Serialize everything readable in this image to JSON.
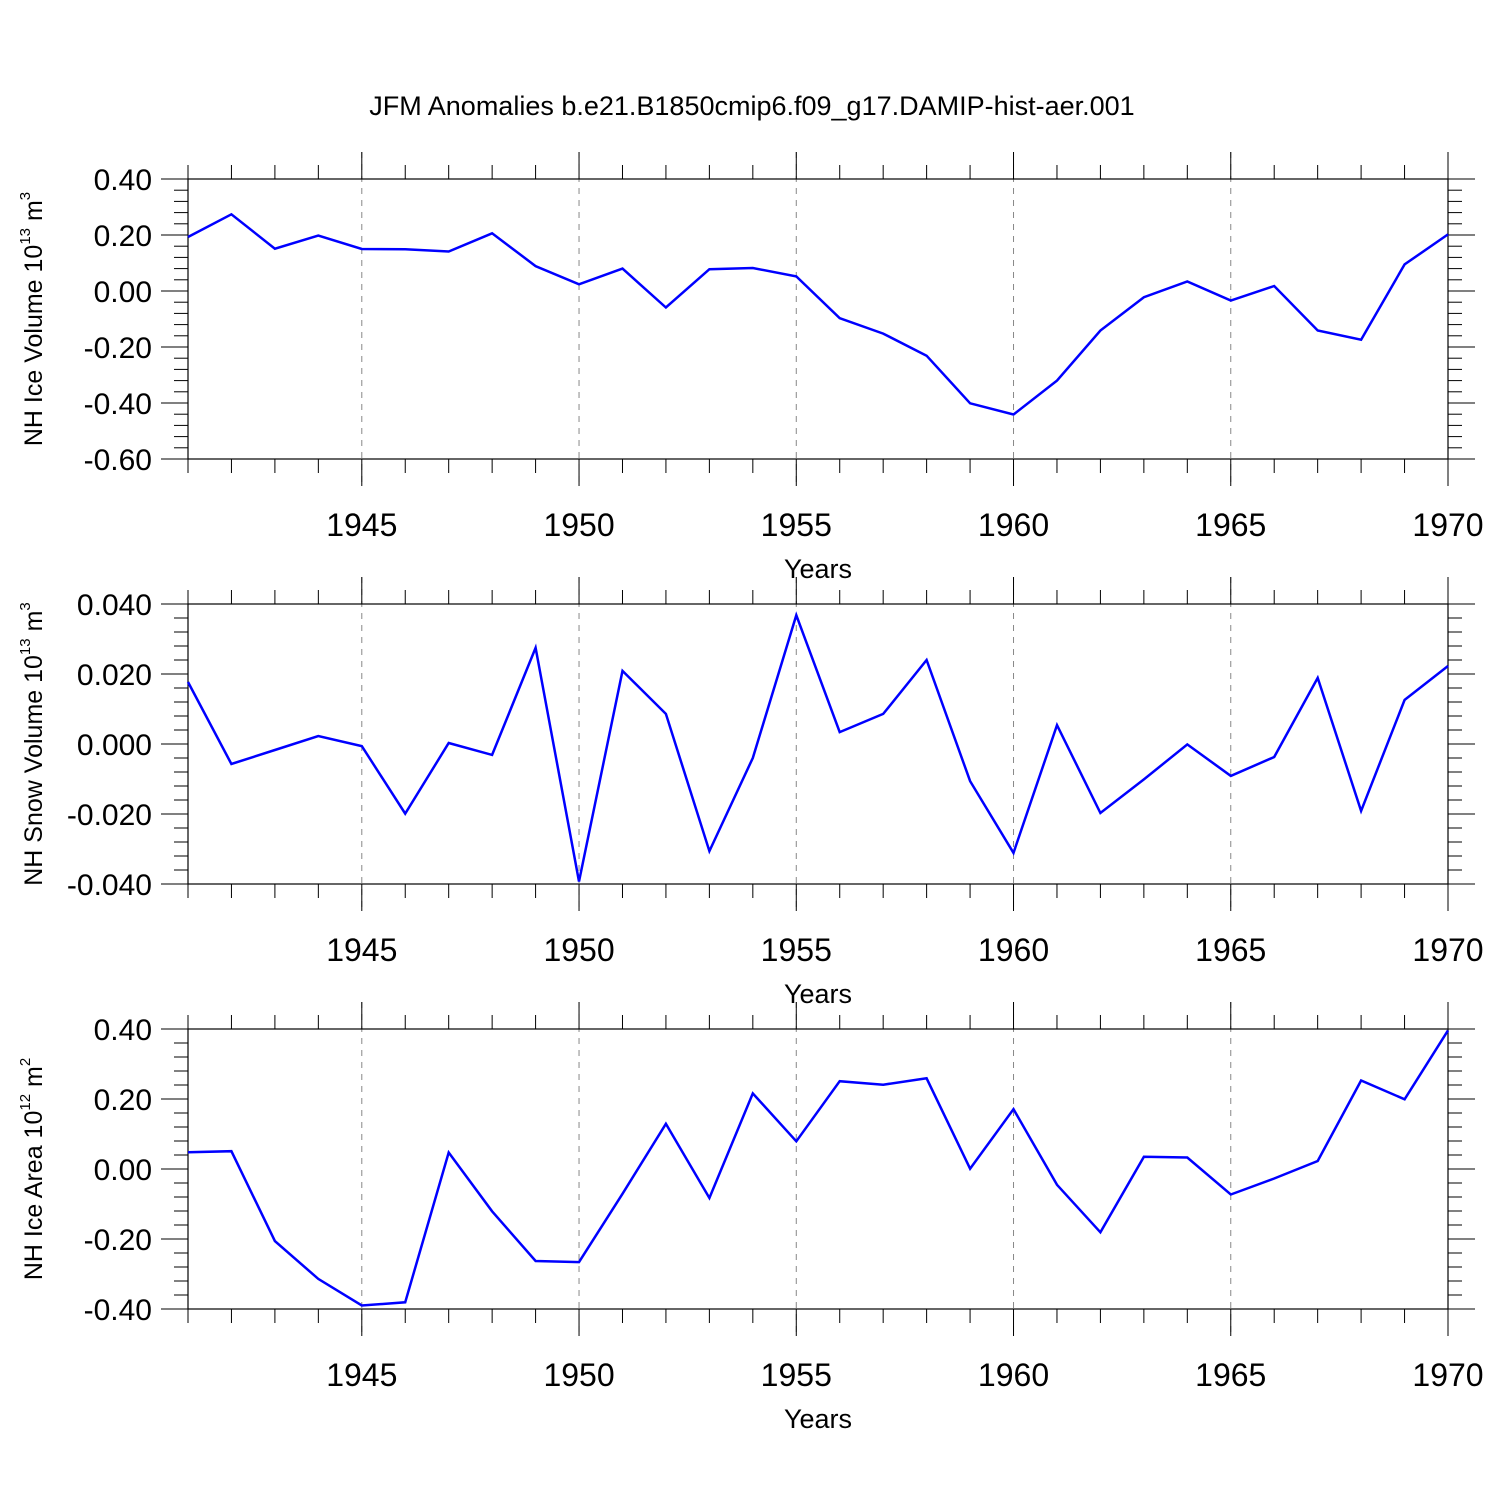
{
  "title": "JFM Anomalies b.e21.B1850cmip6.f09_g17.DAMIP-hist-aer.001",
  "colors": {
    "line": "#0000ff",
    "axis": "#000000",
    "grid": "#888888",
    "background": "#ffffff"
  },
  "chart_data": [
    {
      "type": "line",
      "ylabel": {
        "text": "NH Ice Volume 10",
        "exponent": "13",
        "unit": " m",
        "unit_exponent": "3"
      },
      "xlabel": "Years",
      "xlim": [
        1941,
        1970
      ],
      "ylim": [
        -0.6,
        0.4
      ],
      "xticks": [
        1945,
        1950,
        1955,
        1960,
        1965,
        1970
      ],
      "xtick_labels": [
        "1945",
        "1950",
        "1955",
        "1960",
        "1965",
        "1970"
      ],
      "yticks": [
        0.4,
        0.2,
        0.0,
        -0.2,
        -0.4,
        -0.6
      ],
      "ytick_labels": [
        "0.40",
        "0.20",
        "0.00",
        "-0.20",
        "-0.40",
        "-0.60"
      ],
      "grid": "dashed vertical at labeled years",
      "x": [
        1941,
        1942,
        1943,
        1944,
        1945,
        1946,
        1947,
        1948,
        1949,
        1950,
        1951,
        1952,
        1953,
        1954,
        1955,
        1956,
        1957,
        1958,
        1959,
        1960,
        1961,
        1962,
        1963,
        1964,
        1965,
        1966,
        1967,
        1968,
        1969,
        1970
      ],
      "y": [
        0.193,
        0.274,
        0.151,
        0.198,
        0.15,
        0.149,
        0.141,
        0.206,
        0.089,
        0.024,
        0.08,
        -0.059,
        0.078,
        0.082,
        0.052,
        -0.097,
        -0.152,
        -0.231,
        -0.401,
        -0.441,
        -0.32,
        -0.141,
        -0.022,
        0.034,
        -0.034,
        0.018,
        -0.141,
        -0.174,
        0.095,
        0.202
      ]
    },
    {
      "type": "line",
      "ylabel": {
        "text": "NH Snow Volume 10",
        "exponent": "13",
        "unit": " m",
        "unit_exponent": "3"
      },
      "xlabel": "Years",
      "xlim": [
        1941,
        1970
      ],
      "ylim": [
        -0.04,
        0.04
      ],
      "xticks": [
        1945,
        1950,
        1955,
        1960,
        1965,
        1970
      ],
      "xtick_labels": [
        "1945",
        "1950",
        "1955",
        "1960",
        "1965",
        "1970"
      ],
      "yticks": [
        0.04,
        0.02,
        0.0,
        -0.02,
        -0.04
      ],
      "ytick_labels": [
        "0.040",
        "0.020",
        "0.000",
        "-0.020",
        "-0.040"
      ],
      "grid": "dashed vertical at labeled years",
      "x": [
        1941,
        1942,
        1943,
        1944,
        1945,
        1946,
        1947,
        1948,
        1949,
        1950,
        1951,
        1952,
        1953,
        1954,
        1955,
        1956,
        1957,
        1958,
        1959,
        1960,
        1961,
        1962,
        1963,
        1964,
        1965,
        1966,
        1967,
        1968,
        1969,
        1970
      ],
      "y": [
        0.0177,
        -0.0057,
        -0.0017,
        0.0023,
        -0.0006,
        -0.0199,
        0.0003,
        -0.0031,
        0.0275,
        -0.0393,
        0.0209,
        0.0086,
        -0.0306,
        -0.004,
        0.0368,
        0.0034,
        0.0086,
        0.024,
        -0.0106,
        -0.0311,
        0.0054,
        -0.0197,
        -0.0101,
        -0.0001,
        -0.0091,
        -0.0037,
        0.0189,
        -0.0191,
        0.0126,
        0.0223
      ]
    },
    {
      "type": "line",
      "ylabel": {
        "text": "NH Ice Area 10",
        "exponent": "12",
        "unit": " m",
        "unit_exponent": "2"
      },
      "xlabel": "Years",
      "xlim": [
        1941,
        1970
      ],
      "ylim": [
        -0.4,
        0.4
      ],
      "xticks": [
        1945,
        1950,
        1955,
        1960,
        1965,
        1970
      ],
      "xtick_labels": [
        "1945",
        "1950",
        "1955",
        "1960",
        "1965",
        "1970"
      ],
      "yticks": [
        0.4,
        0.2,
        0.0,
        -0.2,
        -0.4
      ],
      "ytick_labels": [
        "0.40",
        "0.20",
        "0.00",
        "-0.20",
        "-0.40"
      ],
      "grid": "dashed vertical at labeled years",
      "x": [
        1941,
        1942,
        1943,
        1944,
        1945,
        1946,
        1947,
        1948,
        1949,
        1950,
        1951,
        1952,
        1953,
        1954,
        1955,
        1956,
        1957,
        1958,
        1959,
        1960,
        1961,
        1962,
        1963,
        1964,
        1965,
        1966,
        1967,
        1968,
        1969,
        1970
      ],
      "y": [
        0.048,
        0.051,
        -0.206,
        -0.314,
        -0.39,
        -0.381,
        0.047,
        -0.121,
        -0.263,
        -0.266,
        -0.071,
        0.129,
        -0.083,
        0.216,
        0.079,
        0.251,
        0.241,
        0.259,
        0.001,
        0.171,
        -0.045,
        -0.181,
        0.035,
        0.033,
        -0.073,
        -0.027,
        0.023,
        0.253,
        0.199,
        0.396
      ]
    }
  ]
}
